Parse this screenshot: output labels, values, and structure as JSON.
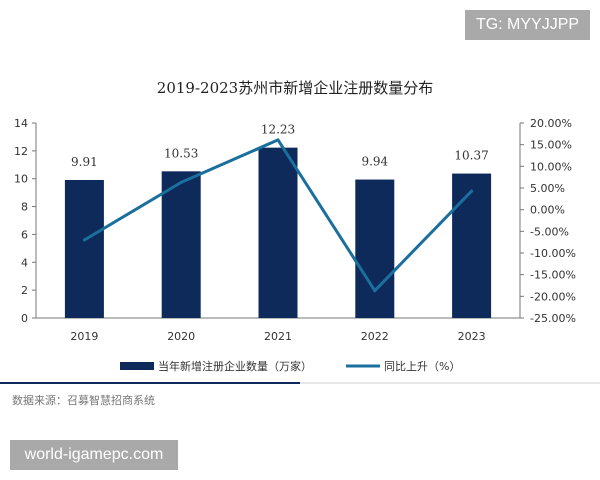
{
  "watermarks": {
    "top": "TG: MYYJJPP",
    "bottom": "world-igamepc.com"
  },
  "source": "数据来源：召募智慧招商系统",
  "colors": {
    "bar": "#0d2a5b",
    "line": "#1a6f9c",
    "divider": "#0d2a5b"
  },
  "chart_data": {
    "type": "bar",
    "title": "2019-2023苏州市新增企业注册数量分布",
    "categories": [
      "2019",
      "2020",
      "2021",
      "2022",
      "2023"
    ],
    "series": [
      {
        "name": "当年新增注册企业数量（万家）",
        "type": "bar",
        "axis": "left",
        "values": [
          9.91,
          10.53,
          12.23,
          9.94,
          10.37
        ],
        "labels": [
          "9.91",
          "10.53",
          "12.23",
          "9.94",
          "10.37"
        ]
      },
      {
        "name": "同比上升（%）",
        "type": "line",
        "axis": "right",
        "values": [
          -7.0,
          6.3,
          16.1,
          -18.7,
          4.3
        ]
      }
    ],
    "left_axis": {
      "ylim": [
        0,
        14
      ],
      "ticks": [
        "0",
        "2",
        "4",
        "6",
        "8",
        "10",
        "12",
        "14"
      ]
    },
    "right_axis": {
      "ylim": [
        -25,
        20
      ],
      "ticks": [
        "-25.00%",
        "-20.00%",
        "-15.00%",
        "-10.00%",
        "-5.00%",
        "0.00%",
        "5.00%",
        "10.00%",
        "15.00%",
        "20.00%"
      ]
    },
    "legend_position": "bottom",
    "grid": false
  }
}
